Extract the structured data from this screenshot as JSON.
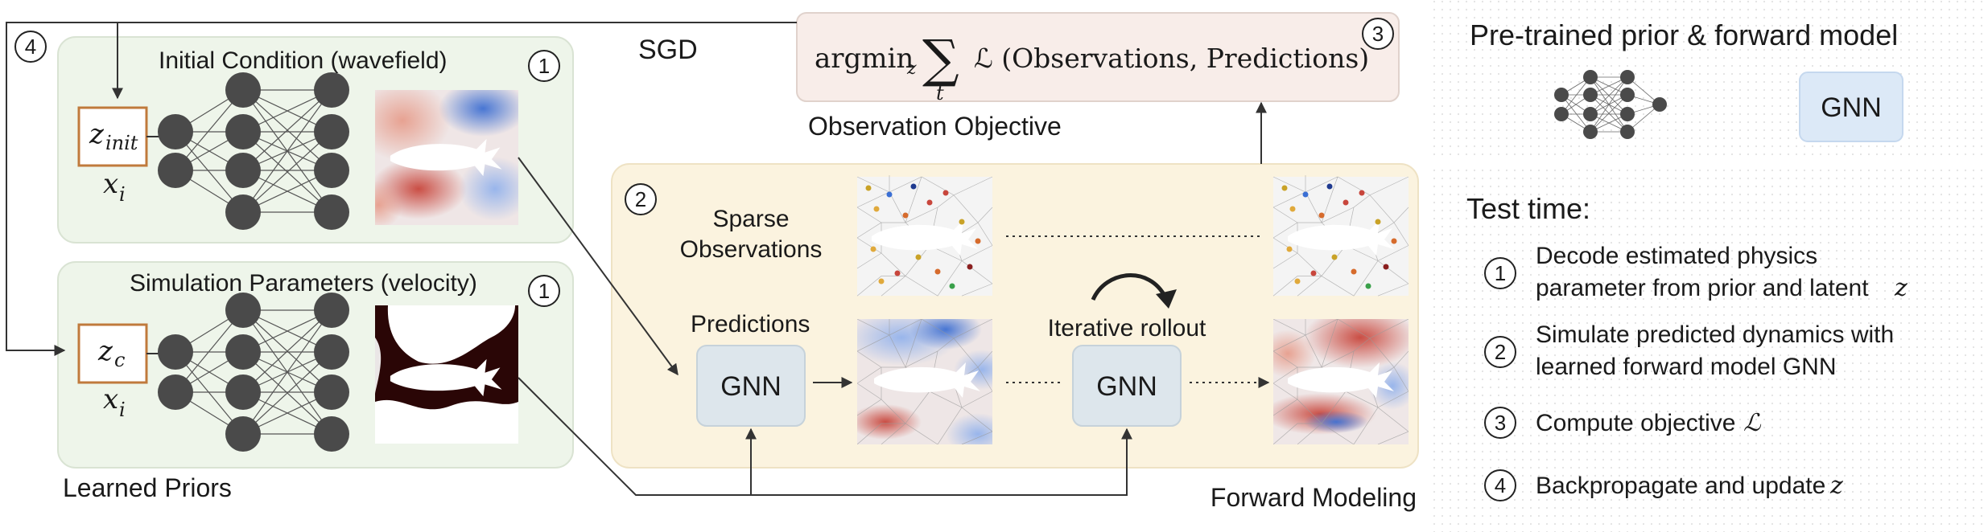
{
  "colors": {
    "prior_panel": "#eef5ea",
    "forward_panel": "#fbf3df",
    "objective_panel": "#f8ede9",
    "gnn_box": "#dde6ec",
    "gnn_box_right": "#dce9f7",
    "latent_border": "#c07a3c",
    "node": "#4a4a4a",
    "red": "#c8463c",
    "blue": "#4f7dd8"
  },
  "labels": {
    "step4_marker": "4",
    "sgd": "SGD",
    "objective_formula": "argmin_z Σ_t ℒ (Observations, Predictions)",
    "objective_formula_argmin": "argmin",
    "objective_formula_z": "z",
    "objective_formula_sum": "∑",
    "objective_formula_t": "t",
    "objective_formula_loss": "ℒ (Observations, Predictions)",
    "objective_marker": "3",
    "objective_caption": "Observation Objective",
    "initial_condition_title": "Initial Condition (wavefield)",
    "initial_condition_marker": "1",
    "z_init": "z",
    "z_init_sub": "init",
    "x_i_top": "x",
    "x_i_top_sub": "i",
    "sim_params_title": "Simulation Parameters (velocity)",
    "sim_params_marker": "1",
    "z_c": "z",
    "z_c_sub": "c",
    "x_i_bottom": "x",
    "x_i_bottom_sub": "i",
    "learned_priors": "Learned Priors",
    "forward_marker": "2",
    "sparse_observations_line1": "Sparse",
    "sparse_observations_line2": "Observations",
    "predictions": "Predictions",
    "gnn_left": "GNN",
    "iterative_rollout": "Iterative rollout",
    "gnn_right": "GNN",
    "forward_modeling": "Forward Modeling"
  },
  "sidebar": {
    "title": "Pre-trained prior & forward model",
    "gnn_label": "GNN",
    "test_time": "Test time:",
    "steps": [
      {
        "marker": "1",
        "line1": "Decode estimated physics",
        "line2": "parameter from prior and latent",
        "line2_math": "z"
      },
      {
        "marker": "2",
        "line1": "Simulate predicted dynamics with",
        "line2": "learned forward model GNN",
        "line2_math": ""
      },
      {
        "marker": "3",
        "line1": "Compute objective",
        "line1_math": "ℒ"
      },
      {
        "marker": "4",
        "line1": "Backpropagate and update",
        "line1_math": "z"
      }
    ]
  }
}
